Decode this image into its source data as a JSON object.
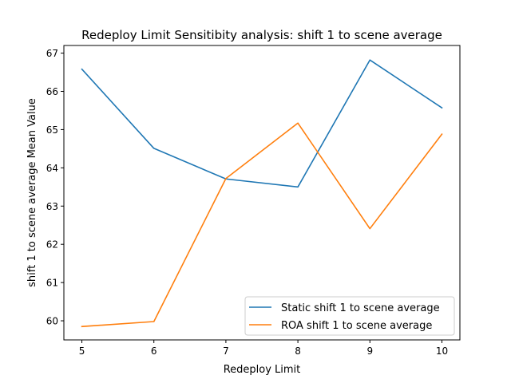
{
  "chart_data": {
    "type": "line",
    "title": "Redeploy Limit Sensitibity analysis: shift 1 to scene average",
    "xlabel": "Redeploy Limit",
    "ylabel": "shift 1 to scene average Mean Value",
    "x": [
      5,
      6,
      7,
      8,
      9,
      10
    ],
    "xlim": [
      4.75,
      10.25
    ],
    "ylim": [
      59.5,
      67.2
    ],
    "xticks": [
      5,
      6,
      7,
      8,
      9,
      10
    ],
    "yticks": [
      60,
      61,
      62,
      63,
      64,
      65,
      66,
      67
    ],
    "grid": false,
    "legend_position": "lower-right",
    "series": [
      {
        "name": "Static shift 1 to scene average",
        "color": "#1f77b4",
        "values": [
          66.58,
          64.51,
          63.71,
          63.5,
          66.82,
          65.57
        ]
      },
      {
        "name": "ROA shift 1 to scene average",
        "color": "#ff7f0e",
        "values": [
          59.85,
          59.98,
          63.72,
          65.17,
          62.41,
          64.88
        ]
      }
    ]
  }
}
